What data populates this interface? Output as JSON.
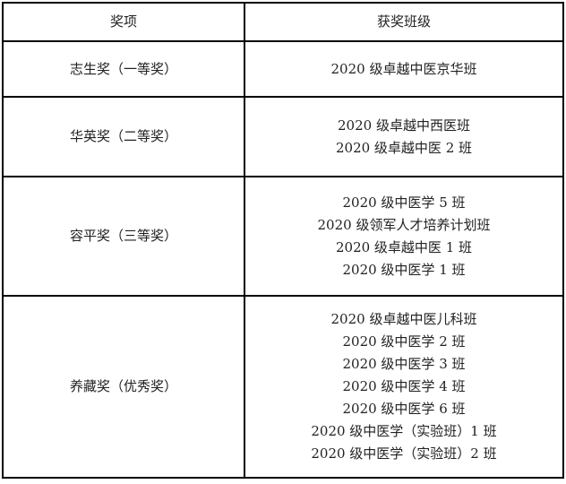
{
  "table": {
    "headers": [
      "奖项",
      "获奖班级"
    ],
    "rows": [
      {
        "award": "志生奖（一等奖）",
        "classes": [
          "2020 级卓越中医京华班"
        ]
      },
      {
        "award": "华英奖（二等奖）",
        "classes": [
          "2020 级卓越中西医班",
          "2020 级卓越中医 2 班"
        ]
      },
      {
        "award": "容平奖（三等奖）",
        "classes": [
          "2020 级中医学 5 班",
          "2020 级领军人才培养计划班",
          "2020 级卓越中医 1 班",
          "2020 级中医学 1 班"
        ]
      },
      {
        "award": "养藏奖（优秀奖）",
        "classes": [
          "2020 级卓越中医儿科班",
          "2020 级中医学 2 班",
          "2020 级中医学 3 班",
          "2020 级中医学 4 班",
          "2020 级中医学 6 班",
          "2020 级中医学（实验班）1 班",
          "2020 级中医学（实验班）2 班"
        ]
      }
    ]
  },
  "colors": {
    "border": "#000000",
    "text": "#222222",
    "background": "#ffffff"
  }
}
